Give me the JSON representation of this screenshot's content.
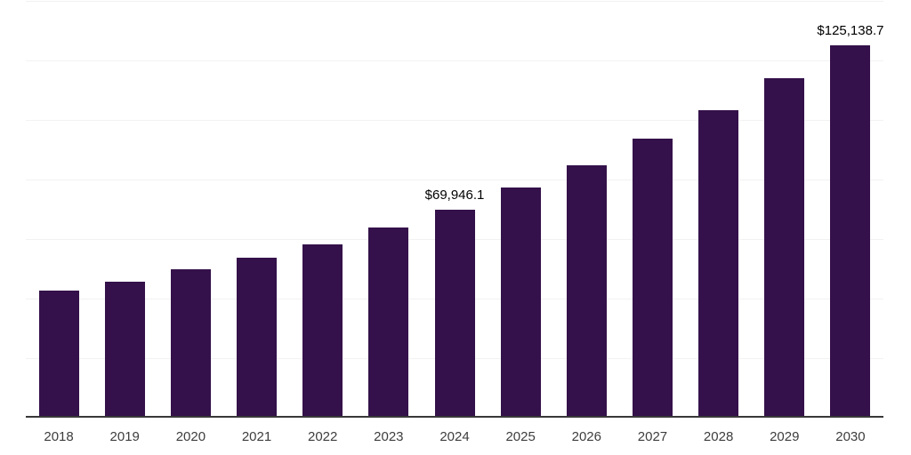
{
  "chart_data": {
    "type": "bar",
    "title": "",
    "xlabel": "",
    "ylabel": "",
    "categories": [
      "2018",
      "2019",
      "2020",
      "2021",
      "2022",
      "2023",
      "2024",
      "2025",
      "2026",
      "2027",
      "2028",
      "2029",
      "2030"
    ],
    "values": [
      42600,
      45800,
      49900,
      53800,
      58300,
      63900,
      69946.1,
      77200,
      84900,
      93800,
      103200,
      113900,
      125138.7
    ],
    "data_labels": {
      "2024": "$69,946.1",
      "2030": "$125,138.7"
    },
    "ylim": [
      0,
      140000
    ],
    "gridline_step": 20000,
    "grid": "horizontal",
    "legend": "none",
    "y_axis_tick_labels_visible": false,
    "colors": {
      "bar": "#34114a",
      "gridline": "#f2f2f2",
      "axis_line": "#383838",
      "tick_label": "#3d3d3d",
      "data_label": "#000000",
      "background": "#ffffff"
    }
  }
}
